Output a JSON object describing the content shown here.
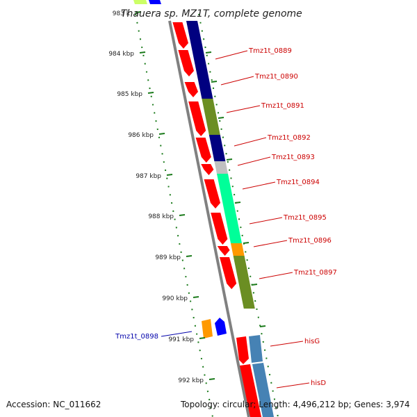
{
  "title": "Thauera sp. MZ1T, complete genome",
  "accession": "Accession: NC_011662",
  "topology": "Topology: circular; Length: 4,496,212 bp; Genes: 3,974",
  "colors": {
    "forward_label": "#cc0000",
    "reverse_label": "#0000aa",
    "backbone": "#808080",
    "tick": "#1a7a1a",
    "cds_red": "#ff0000",
    "navy": "#000080",
    "olive": "#6b8e23",
    "spring_green": "#00ff99",
    "orange": "#ff9900",
    "steel_blue": "#4682b4",
    "light_gray": "#c0c0c0",
    "blue": "#0000ff"
  },
  "kbp_labels": [
    "983 k",
    "984 kbp",
    "985 kbp",
    "986 kbp",
    "987 kbp",
    "988 kbp",
    "989 kbp",
    "990 kbp",
    "991 kbp",
    "992 kbp"
  ],
  "genes": [
    {
      "label": "Tmz1t_0889",
      "strand": "+"
    },
    {
      "label": "Tmz1t_0890",
      "strand": "+"
    },
    {
      "label": "Tmz1t_0891",
      "strand": "+"
    },
    {
      "label": "Tmz1t_0892",
      "strand": "+"
    },
    {
      "label": "Tmz1t_0893",
      "strand": "+"
    },
    {
      "label": "Tmz1t_0894",
      "strand": "+"
    },
    {
      "label": "Tmz1t_0895",
      "strand": "+"
    },
    {
      "label": "Tmz1t_0896",
      "strand": "+"
    },
    {
      "label": "Tmz1t_0897",
      "strand": "+"
    },
    {
      "label": "Tmz1t_0898",
      "strand": "-"
    },
    {
      "label": "hisG",
      "strand": "+"
    },
    {
      "label": "hisD",
      "strand": "+"
    }
  ]
}
